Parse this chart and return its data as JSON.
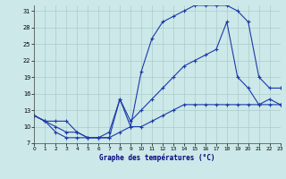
{
  "title": "Graphe des températures (°C)",
  "background_color": "#cce8e8",
  "grid_color": "#aacccc",
  "line_color": "#1a3aaa",
  "xlim": [
    0,
    23
  ],
  "ylim": [
    7,
    32
  ],
  "xticks": [
    0,
    1,
    2,
    3,
    4,
    5,
    6,
    7,
    8,
    9,
    10,
    11,
    12,
    13,
    14,
    15,
    16,
    17,
    18,
    19,
    20,
    21,
    22,
    23
  ],
  "yticks": [
    7,
    10,
    13,
    16,
    19,
    22,
    25,
    28,
    31
  ],
  "line1_x": [
    0,
    1,
    2,
    3,
    4,
    5,
    6,
    7,
    8,
    9,
    10,
    11,
    12,
    13,
    14,
    15,
    16,
    17,
    18,
    19,
    20,
    21,
    22,
    23
  ],
  "line1_y": [
    12,
    11,
    11,
    11,
    9,
    8,
    8,
    8,
    15,
    10,
    20,
    26,
    29,
    30,
    31,
    32,
    32,
    32,
    32,
    31,
    29,
    19,
    17,
    17
  ],
  "line2_x": [
    0,
    1,
    2,
    3,
    4,
    5,
    6,
    7,
    8,
    9,
    10,
    11,
    12,
    13,
    14,
    15,
    16,
    17,
    18,
    19,
    20,
    21,
    22,
    23
  ],
  "line2_y": [
    12,
    11,
    9,
    8,
    8,
    8,
    8,
    8,
    9,
    10,
    10,
    11,
    12,
    13,
    14,
    14,
    14,
    14,
    14,
    14,
    14,
    14,
    15,
    14
  ],
  "line3_x": [
    0,
    1,
    2,
    3,
    4,
    5,
    6,
    7,
    8,
    9,
    10,
    11,
    12,
    13,
    14,
    15,
    16,
    17,
    18,
    19,
    20,
    21,
    22,
    23
  ],
  "line3_y": [
    12,
    11,
    10,
    9,
    9,
    8,
    8,
    9,
    15,
    11,
    13,
    15,
    17,
    19,
    21,
    22,
    23,
    24,
    29,
    19,
    17,
    14,
    14,
    14
  ]
}
